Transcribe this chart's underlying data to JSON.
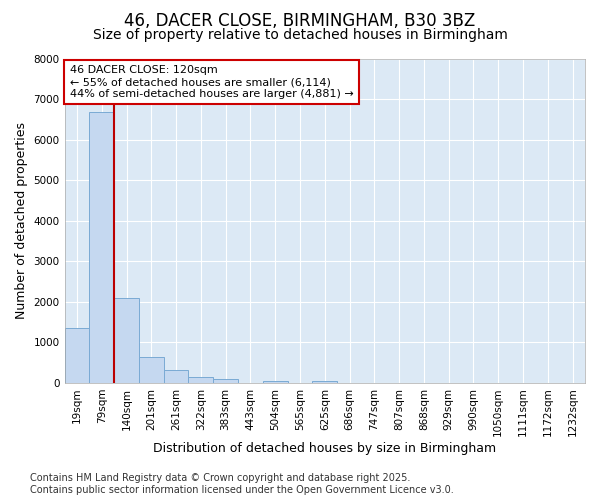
{
  "title1": "46, DACER CLOSE, BIRMINGHAM, B30 3BZ",
  "title2": "Size of property relative to detached houses in Birmingham",
  "xlabel": "Distribution of detached houses by size in Birmingham",
  "ylabel": "Number of detached properties",
  "categories": [
    "19sqm",
    "79sqm",
    "140sqm",
    "201sqm",
    "261sqm",
    "322sqm",
    "383sqm",
    "443sqm",
    "504sqm",
    "565sqm",
    "625sqm",
    "686sqm",
    "747sqm",
    "807sqm",
    "868sqm",
    "929sqm",
    "990sqm",
    "1050sqm",
    "1111sqm",
    "1172sqm",
    "1232sqm"
  ],
  "values": [
    1350,
    6680,
    2100,
    650,
    320,
    150,
    90,
    0,
    50,
    0,
    50,
    0,
    0,
    0,
    0,
    0,
    0,
    0,
    0,
    0,
    0
  ],
  "bar_color": "#c5d8f0",
  "bar_edge_color": "#7aaad4",
  "vline_color": "#bb0000",
  "vline_x_index": 1.5,
  "annotation_text": "46 DACER CLOSE: 120sqm\n← 55% of detached houses are smaller (6,114)\n44% of semi-detached houses are larger (4,881) →",
  "annotation_box_edgecolor": "#cc0000",
  "fig_bg_color": "#ffffff",
  "plot_bg_color": "#dce9f5",
  "ylim": [
    0,
    8000
  ],
  "yticks": [
    0,
    1000,
    2000,
    3000,
    4000,
    5000,
    6000,
    7000,
    8000
  ],
  "grid_color": "#ffffff",
  "footer_text": "Contains HM Land Registry data © Crown copyright and database right 2025.\nContains public sector information licensed under the Open Government Licence v3.0.",
  "title1_fontsize": 12,
  "title2_fontsize": 10,
  "axis_label_fontsize": 9,
  "tick_fontsize": 7.5,
  "annotation_fontsize": 8,
  "footer_fontsize": 7
}
